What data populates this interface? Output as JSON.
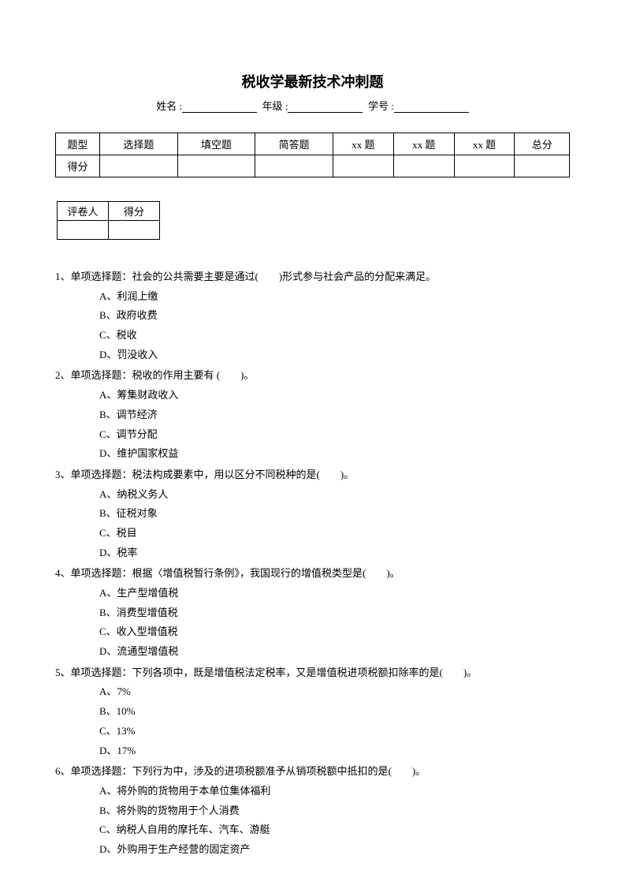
{
  "title": "税收学最新技术冲刺题",
  "info": {
    "name_label": "姓名 :",
    "grade_label": "年级 :",
    "id_label": "学号 :"
  },
  "score_table": {
    "row1": [
      "题型",
      "选择题",
      "填空题",
      "简答题",
      "xx 题",
      "xx 题",
      "xx 题",
      "总分"
    ],
    "row2_label": "得分"
  },
  "grader_table": {
    "col1": "评卷人",
    "col2": "得分"
  },
  "questions": [
    {
      "num": "1、",
      "stem": "单项选择题：社会的公共需要主要是通过(　　)形式参与社会产品的分配来满足。",
      "options": [
        "A、利润上缴",
        "B、政府收费",
        "C、税收",
        "D、罚没收入"
      ]
    },
    {
      "num": "2、",
      "stem": "单项选择题：税收的作用主要有 (　　)。",
      "options": [
        "A、筹集财政收入",
        "B、调节经济",
        "C、调节分配",
        "D、维护国家权益"
      ]
    },
    {
      "num": "3、",
      "stem": "单项选择题：税法构成要素中，用以区分不同税种的是(　　)。",
      "options": [
        "A、纳税义务人",
        "B、征税对象",
        "C、税目",
        "D、税率"
      ]
    },
    {
      "num": "4、",
      "stem": "单项选择题：根据〈增值税暂行条例》，我国现行的增值税类型是(　　)。",
      "options": [
        "A、生产型增值税",
        "B、消费型增值税",
        "C、收入型增值税",
        "D、流通型增值税"
      ]
    },
    {
      "num": "5、",
      "stem": "单项选择题：下列各项中，既是增值税法定税率，又是增值税进项税额扣除率的是(　　)。",
      "options": [
        "A、7%",
        "B、10%",
        "C、13%",
        "D、17%"
      ]
    },
    {
      "num": "6、",
      "stem": "单项选择题：下列行为中，涉及的进项税额准予从销项税额中抵扣的是(　　)。",
      "options": [
        "A、将外购的货物用于本单位集体福利",
        "B、将外购的货物用于个人消费",
        "C、纳税人自用的摩托车、汽车、游艇",
        "D、外购用于生产经营的固定资产"
      ]
    }
  ]
}
